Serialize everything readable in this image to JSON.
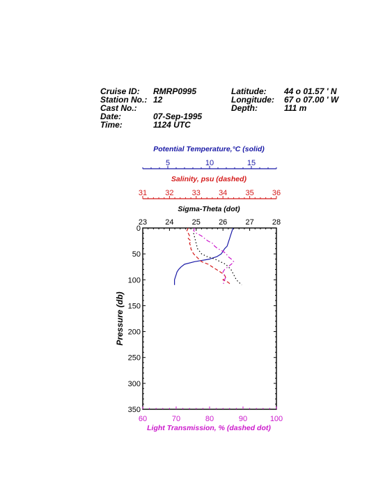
{
  "header": {
    "cruise_id_label": "Cruise ID:",
    "cruise_id": "RMRP0995",
    "station_label": "Station No.:",
    "station": "12",
    "cast_label": "Cast No.:",
    "cast": "",
    "date_label": "Date:",
    "date": "07-Sep-1995",
    "time_label": "Time:",
    "time": "1124 UTC",
    "latitude_label": "Latitude:",
    "latitude": "44 o  01.57 ' N",
    "longitude_label": "Longitude:",
    "longitude": "67 o  07.00 ' W",
    "depth_label": "Depth:",
    "depth": "111 m"
  },
  "chart_data": {
    "type": "line",
    "y_axis": {
      "label": "Pressure (db)",
      "range": [
        0,
        350
      ],
      "ticks": [
        "0",
        "50",
        "100",
        "150",
        "200",
        "250",
        "300",
        "350"
      ],
      "inverted": true
    },
    "axes": {
      "temperature": {
        "label": "Potential Temperature,°C (solid)",
        "range": [
          2,
          18
        ],
        "ticks": [
          "5",
          "10",
          "15"
        ],
        "tick_values": [
          5,
          10,
          15
        ],
        "color": "#1a1aa6"
      },
      "salinity": {
        "label": "Salinity, psu  (dashed)",
        "range": [
          31,
          36
        ],
        "ticks": [
          "31",
          "32",
          "33",
          "34",
          "35",
          "36"
        ],
        "tick_values": [
          31,
          32,
          33,
          34,
          35,
          36
        ],
        "color": "#d41a1a"
      },
      "sigma": {
        "label": "Sigma-Theta (dot)",
        "range": [
          23,
          28
        ],
        "ticks": [
          "23",
          "24",
          "25",
          "26",
          "27",
          "28"
        ],
        "tick_values": [
          23,
          24,
          25,
          26,
          27,
          28
        ],
        "color": "#000000"
      },
      "transmission": {
        "label": "Light Transmission, % (dashed dot)",
        "range": [
          60,
          100
        ],
        "ticks": [
          "60",
          "70",
          "80",
          "90",
          "100"
        ],
        "tick_values": [
          60,
          70,
          80,
          90,
          100
        ],
        "color": "#cc19cc"
      }
    },
    "series": [
      {
        "axis": "temperature",
        "style": "solid",
        "color": "#1a1aa6",
        "points": [
          [
            12.8,
            0
          ],
          [
            12.7,
            5
          ],
          [
            12.6,
            10
          ],
          [
            12.5,
            15
          ],
          [
            12.4,
            20
          ],
          [
            12.3,
            25
          ],
          [
            12.2,
            30
          ],
          [
            12.1,
            35
          ],
          [
            11.8,
            40
          ],
          [
            11.6,
            45
          ],
          [
            11.4,
            50
          ],
          [
            10.9,
            55
          ],
          [
            10.0,
            60
          ],
          [
            8.2,
            65
          ],
          [
            7.0,
            70
          ],
          [
            6.6,
            75
          ],
          [
            6.3,
            80
          ],
          [
            6.1,
            85
          ],
          [
            6.0,
            90
          ],
          [
            5.9,
            95
          ],
          [
            5.8,
            100
          ],
          [
            5.8,
            105
          ],
          [
            5.8,
            110
          ]
        ]
      },
      {
        "axis": "salinity",
        "style": "dashed",
        "color": "#d41a1a",
        "points": [
          [
            32.7,
            0
          ],
          [
            32.65,
            5
          ],
          [
            32.7,
            10
          ],
          [
            32.75,
            15
          ],
          [
            32.7,
            20
          ],
          [
            32.8,
            25
          ],
          [
            32.75,
            30
          ],
          [
            32.8,
            35
          ],
          [
            32.8,
            40
          ],
          [
            32.85,
            45
          ],
          [
            32.9,
            50
          ],
          [
            33.0,
            55
          ],
          [
            33.1,
            60
          ],
          [
            33.2,
            65
          ],
          [
            33.45,
            70
          ],
          [
            33.6,
            75
          ],
          [
            33.75,
            80
          ],
          [
            33.9,
            85
          ],
          [
            34.05,
            90
          ],
          [
            34.1,
            95
          ],
          [
            34.0,
            100
          ],
          [
            34.2,
            105
          ],
          [
            34.3,
            110
          ]
        ]
      },
      {
        "axis": "sigma",
        "style": "dot",
        "color": "#000000",
        "points": [
          [
            24.9,
            10
          ],
          [
            24.95,
            20
          ],
          [
            25.0,
            30
          ],
          [
            25.05,
            40
          ],
          [
            25.2,
            50
          ],
          [
            25.4,
            55
          ],
          [
            25.7,
            60
          ],
          [
            25.9,
            65
          ],
          [
            26.1,
            70
          ],
          [
            26.2,
            75
          ],
          [
            26.3,
            80
          ],
          [
            26.35,
            85
          ],
          [
            26.4,
            90
          ],
          [
            26.45,
            95
          ],
          [
            26.5,
            100
          ],
          [
            26.6,
            105
          ],
          [
            26.7,
            110
          ]
        ]
      },
      {
        "axis": "transmission",
        "style": "dashdot",
        "color": "#cc19cc",
        "points": [
          [
            75.5,
            0
          ],
          [
            75.2,
            5
          ],
          [
            76.0,
            10
          ],
          [
            77.5,
            15
          ],
          [
            78.5,
            20
          ],
          [
            79.5,
            25
          ],
          [
            81.0,
            30
          ],
          [
            81.5,
            35
          ],
          [
            82.5,
            40
          ],
          [
            84.0,
            45
          ],
          [
            85.0,
            50
          ],
          [
            85.5,
            55
          ],
          [
            86.5,
            60
          ],
          [
            87.2,
            65
          ],
          [
            86.5,
            70
          ],
          [
            85.5,
            75
          ],
          [
            84.5,
            80
          ],
          [
            84.0,
            85
          ],
          [
            84.3,
            90
          ],
          [
            84.8,
            95
          ],
          [
            84.5,
            100
          ],
          [
            84.0,
            105
          ],
          [
            84.5,
            110
          ]
        ]
      }
    ]
  }
}
